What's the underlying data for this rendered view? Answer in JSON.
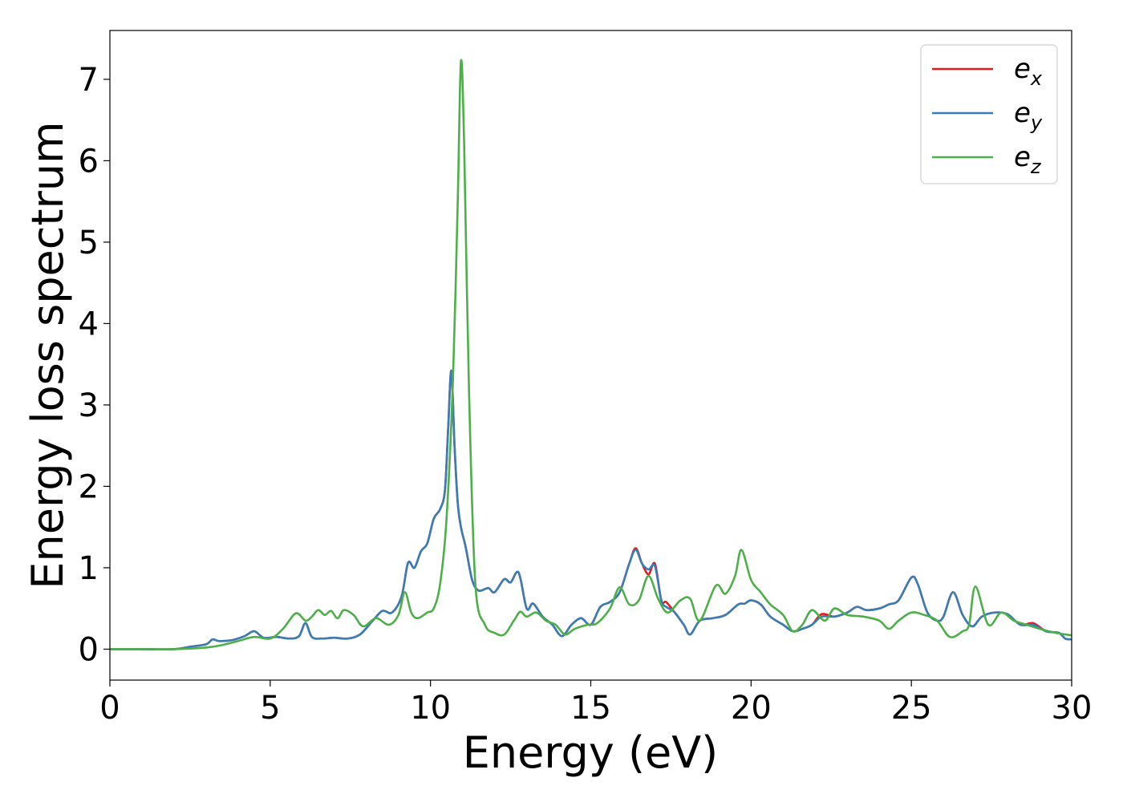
{
  "chart_data": {
    "type": "line",
    "xlabel": "Energy (eV)",
    "ylabel": "Energy loss spectrum",
    "xlim": [
      0,
      30
    ],
    "ylim": [
      -0.38,
      7.6
    ],
    "xticks": [
      0,
      5,
      10,
      15,
      20,
      25,
      30
    ],
    "yticks": [
      0,
      1,
      2,
      3,
      4,
      5,
      6,
      7
    ],
    "grid": false,
    "legend_position": "top-right",
    "series": [
      {
        "name": "e_x",
        "label_base": "e",
        "label_sub": "x",
        "color": "#e41a1c",
        "x": [
          0,
          1,
          2,
          2.5,
          3,
          3.2,
          3.4,
          3.8,
          4.2,
          4.5,
          4.8,
          5.2,
          5.6,
          5.9,
          6.1,
          6.3,
          6.6,
          7,
          7.4,
          7.8,
          8.2,
          8.5,
          8.8,
          9.1,
          9.3,
          9.5,
          9.7,
          9.9,
          10.1,
          10.3,
          10.45,
          10.55,
          10.65,
          10.75,
          10.85,
          10.95,
          11.1,
          11.3,
          11.5,
          11.8,
          12,
          12.3,
          12.5,
          12.75,
          13,
          13.2,
          13.5,
          13.8,
          14.1,
          14.4,
          14.7,
          15,
          15.3,
          15.6,
          15.9,
          16.2,
          16.4,
          16.6,
          16.8,
          17,
          17.2,
          17.35,
          17.6,
          17.9,
          18.1,
          18.4,
          18.8,
          19.2,
          19.6,
          19.8,
          20,
          20.3,
          20.6,
          21,
          21.3,
          21.6,
          21.9,
          22.2,
          22.6,
          23,
          23.3,
          23.6,
          24,
          24.3,
          24.6,
          25,
          25.2,
          25.5,
          25.8,
          26,
          26.3,
          26.6,
          26.9,
          27.2,
          27.6,
          28,
          28.4,
          28.8,
          29.2,
          29.6,
          29.8,
          30
        ],
        "y": [
          0,
          0,
          0,
          0.03,
          0.06,
          0.12,
          0.1,
          0.11,
          0.16,
          0.22,
          0.14,
          0.15,
          0.13,
          0.16,
          0.32,
          0.15,
          0.13,
          0.14,
          0.13,
          0.18,
          0.35,
          0.47,
          0.45,
          0.65,
          1.06,
          1,
          1.2,
          1.3,
          1.6,
          1.72,
          1.95,
          2.7,
          3.42,
          2.5,
          1.8,
          1.5,
          1.25,
          0.85,
          0.72,
          0.75,
          0.7,
          0.86,
          0.82,
          0.94,
          0.5,
          0.56,
          0.4,
          0.3,
          0.16,
          0.3,
          0.38,
          0.3,
          0.52,
          0.58,
          0.7,
          1.05,
          1.24,
          1.05,
          0.92,
          1.05,
          0.6,
          0.58,
          0.46,
          0.3,
          0.18,
          0.35,
          0.38,
          0.42,
          0.55,
          0.56,
          0.6,
          0.55,
          0.4,
          0.3,
          0.22,
          0.25,
          0.3,
          0.43,
          0.4,
          0.45,
          0.52,
          0.48,
          0.5,
          0.55,
          0.6,
          0.88,
          0.8,
          0.45,
          0.35,
          0.4,
          0.7,
          0.42,
          0.28,
          0.4,
          0.45,
          0.43,
          0.3,
          0.32,
          0.22,
          0.2,
          0.13,
          0.12
        ]
      },
      {
        "name": "e_y",
        "label_base": "e",
        "label_sub": "y",
        "color": "#377eb8",
        "x": [
          0,
          1,
          2,
          2.5,
          3,
          3.2,
          3.4,
          3.8,
          4.2,
          4.5,
          4.8,
          5.2,
          5.6,
          5.9,
          6.1,
          6.3,
          6.6,
          7,
          7.4,
          7.8,
          8.2,
          8.5,
          8.8,
          9.1,
          9.3,
          9.5,
          9.7,
          9.9,
          10.1,
          10.3,
          10.45,
          10.55,
          10.65,
          10.75,
          10.85,
          10.95,
          11.1,
          11.3,
          11.5,
          11.8,
          12,
          12.3,
          12.5,
          12.75,
          13,
          13.2,
          13.5,
          13.8,
          14.1,
          14.4,
          14.7,
          15,
          15.3,
          15.6,
          15.9,
          16.2,
          16.4,
          16.6,
          16.8,
          17,
          17.2,
          17.35,
          17.6,
          17.9,
          18.1,
          18.4,
          18.8,
          19.2,
          19.6,
          19.8,
          20,
          20.3,
          20.6,
          21,
          21.3,
          21.6,
          21.9,
          22.2,
          22.6,
          23,
          23.3,
          23.6,
          24,
          24.3,
          24.6,
          25,
          25.2,
          25.5,
          25.8,
          26,
          26.3,
          26.6,
          26.9,
          27.2,
          27.6,
          28,
          28.4,
          28.8,
          29.2,
          29.6,
          29.8,
          30
        ],
        "y": [
          0,
          0,
          0,
          0.03,
          0.06,
          0.12,
          0.1,
          0.11,
          0.16,
          0.22,
          0.14,
          0.15,
          0.13,
          0.16,
          0.32,
          0.15,
          0.13,
          0.14,
          0.13,
          0.18,
          0.35,
          0.47,
          0.45,
          0.65,
          1.06,
          1,
          1.2,
          1.3,
          1.6,
          1.72,
          1.95,
          2.7,
          3.42,
          2.5,
          1.8,
          1.5,
          1.25,
          0.85,
          0.72,
          0.75,
          0.7,
          0.86,
          0.82,
          0.94,
          0.5,
          0.56,
          0.4,
          0.3,
          0.16,
          0.3,
          0.38,
          0.3,
          0.52,
          0.58,
          0.7,
          1.05,
          1.22,
          1.05,
          0.98,
          1.02,
          0.6,
          0.52,
          0.46,
          0.3,
          0.18,
          0.35,
          0.38,
          0.42,
          0.55,
          0.56,
          0.6,
          0.55,
          0.4,
          0.3,
          0.22,
          0.25,
          0.3,
          0.4,
          0.4,
          0.45,
          0.52,
          0.48,
          0.5,
          0.55,
          0.6,
          0.88,
          0.8,
          0.45,
          0.35,
          0.4,
          0.7,
          0.42,
          0.28,
          0.4,
          0.45,
          0.43,
          0.3,
          0.3,
          0.22,
          0.2,
          0.13,
          0.12
        ]
      },
      {
        "name": "e_z",
        "label_base": "e",
        "label_sub": "z",
        "color": "#4daf4a",
        "x": [
          0,
          1,
          2,
          3,
          3.5,
          4,
          4.5,
          5,
          5.4,
          5.8,
          6.1,
          6.3,
          6.5,
          6.7,
          6.9,
          7.1,
          7.3,
          7.6,
          7.9,
          8.3,
          8.7,
          9,
          9.2,
          9.4,
          9.6,
          9.9,
          10.1,
          10.3,
          10.5,
          10.7,
          10.85,
          10.95,
          11.05,
          11.2,
          11.4,
          11.7,
          12,
          12.3,
          12.6,
          12.8,
          13,
          13.3,
          13.6,
          13.9,
          14.2,
          14.5,
          14.9,
          15.2,
          15.6,
          15.9,
          16.2,
          16.5,
          16.8,
          17.1,
          17.4,
          17.8,
          18.1,
          18.4,
          18.9,
          19.2,
          19.5,
          19.7,
          20,
          20.3,
          20.6,
          21,
          21.3,
          21.6,
          21.9,
          22.3,
          22.6,
          23,
          23.5,
          24,
          24.3,
          24.6,
          25,
          25.4,
          25.8,
          26.2,
          26.6,
          26.8,
          27,
          27.4,
          27.8,
          28.2,
          28.6,
          29,
          29.5,
          30
        ],
        "y": [
          0,
          0,
          0,
          0.02,
          0.05,
          0.1,
          0.15,
          0.13,
          0.25,
          0.44,
          0.35,
          0.4,
          0.48,
          0.42,
          0.47,
          0.38,
          0.48,
          0.42,
          0.28,
          0.38,
          0.3,
          0.42,
          0.7,
          0.45,
          0.38,
          0.45,
          0.5,
          0.8,
          1.6,
          3.3,
          5.5,
          7.22,
          6.2,
          3.2,
          0.8,
          0.3,
          0.2,
          0.18,
          0.35,
          0.46,
          0.4,
          0.45,
          0.35,
          0.3,
          0.18,
          0.25,
          0.3,
          0.32,
          0.5,
          0.76,
          0.55,
          0.6,
          0.9,
          0.62,
          0.45,
          0.6,
          0.62,
          0.35,
          0.78,
          0.68,
          0.9,
          1.22,
          0.85,
          0.7,
          0.55,
          0.42,
          0.22,
          0.3,
          0.48,
          0.35,
          0.5,
          0.42,
          0.4,
          0.35,
          0.25,
          0.35,
          0.45,
          0.42,
          0.35,
          0.15,
          0.22,
          0.3,
          0.77,
          0.3,
          0.45,
          0.35,
          0.3,
          0.25,
          0.2,
          0.17
        ]
      }
    ]
  }
}
